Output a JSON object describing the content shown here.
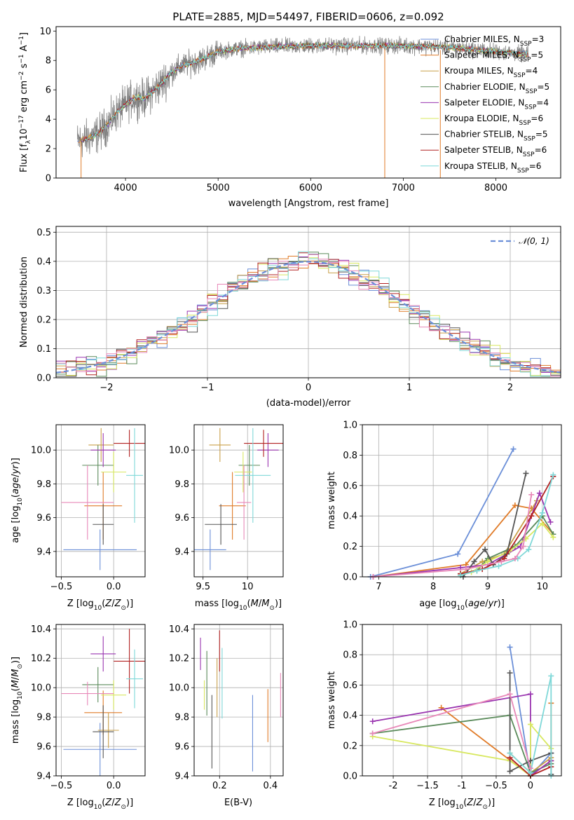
{
  "colors": [
    "#6b8fd8",
    "#e07b28",
    "#c9a04a",
    "#5a8a5a",
    "#9a35b0",
    "#d8e860",
    "#555555",
    "#b22222",
    "#7fd8d8",
    "#e888b8"
  ],
  "chart_data": [
    {
      "id": "spectrum",
      "type": "line",
      "title": "PLATE=2885, MJD=54497, FIBERID=0606, z=0.092",
      "xlabel": "wavelength [Angstrom, rest frame]",
      "ylabel": "Flux [fλ10⁻¹⁷ erg cm⁻² s⁻¹ A⁻¹]",
      "xlim": [
        3250,
        8700
      ],
      "ylim": [
        0,
        10.3
      ],
      "xticks": [
        4000,
        5000,
        6000,
        7000,
        8000
      ],
      "yticks": [
        0,
        2,
        4,
        6,
        8,
        10
      ],
      "data_color": "#808080",
      "data_range": [
        3480,
        8350
      ],
      "continuum": {
        "x": [
          3480,
          3600,
          3700,
          3800,
          3900,
          4000,
          4100,
          4200,
          4300,
          4400,
          4500,
          4600,
          4700,
          4800,
          4900,
          5000,
          5200,
          5500,
          6000,
          6500,
          7000,
          7500,
          8000,
          8350
        ],
        "y": [
          2.5,
          2.7,
          3.0,
          3.6,
          4.4,
          5.0,
          5.5,
          5.4,
          5.9,
          6.5,
          7.2,
          7.6,
          7.8,
          8.0,
          8.3,
          8.6,
          8.8,
          8.9,
          9.0,
          9.0,
          9.0,
          8.9,
          8.6,
          8.4
        ]
      },
      "legend_position": "upper right",
      "legend": [
        "Chabrier MILES, N_SSP=3",
        "Salpeter MILES, N_SSP=5",
        "Kroupa MILES, N_SSP=4",
        "Chabrier ELODIE, N_SSP=5",
        "Salpeter ELODIE, N_SSP=4",
        "Kroupa ELODIE, N_SSP=6",
        "Chabrier STELIB, N_SSP=5",
        "Salpeter STELIB, N_SSP=6",
        "Kroupa STELIB, N_SSP=6"
      ],
      "legend_items": [
        {
          "pre": "Chabrier MILES, N",
          "sub": "SSP",
          "post": "=3"
        },
        {
          "pre": "Salpeter MILES, N",
          "sub": "SSP",
          "post": "=5"
        },
        {
          "pre": "Kroupa MILES, N",
          "sub": "SSP",
          "post": "=4"
        },
        {
          "pre": "Chabrier ELODIE, N",
          "sub": "SSP",
          "post": "=5"
        },
        {
          "pre": "Salpeter ELODIE, N",
          "sub": "SSP",
          "post": "=4"
        },
        {
          "pre": "Kroupa ELODIE, N",
          "sub": "SSP",
          "post": "=6"
        },
        {
          "pre": "Chabrier STELIB, N",
          "sub": "SSP",
          "post": "=5"
        },
        {
          "pre": "Salpeter STELIB, N",
          "sub": "SSP",
          "post": "=6"
        },
        {
          "pre": "Kroupa STELIB, N",
          "sub": "SSP",
          "post": "=6"
        }
      ]
    },
    {
      "id": "residuals",
      "type": "histogram",
      "xlabel": "(data-model)/error",
      "ylabel": "Normed distribution",
      "xlim": [
        -2.5,
        2.5
      ],
      "ylim": [
        0,
        0.52
      ],
      "xticks": [
        -2,
        -1,
        0,
        1,
        2
      ],
      "yticks": [
        0.0,
        0.1,
        0.2,
        0.3,
        0.4,
        0.5
      ],
      "grid": true,
      "gaussian_legend": "𝒩(0, 1)",
      "gaussian_color": "#6b8fd8",
      "bin_width": 0.1,
      "bins_from": -2.5,
      "bin_count": 50
    },
    {
      "id": "z-age",
      "type": "errorbar",
      "xlabel": "Z [log₁₀(Z/Z⊙)]",
      "ylabel": "age  [log₁₀(age/yr)]",
      "xlim": [
        -0.55,
        0.3
      ],
      "ylim": [
        9.25,
        10.15
      ],
      "xticks": [
        -0.5,
        0.0
      ],
      "yticks": [
        9.4,
        9.6,
        9.8,
        10.0
      ],
      "grid": true,
      "points": [
        {
          "x": -0.13,
          "xerr": 0.35,
          "y": 9.41,
          "yerr": 0.12
        },
        {
          "x": -0.1,
          "xerr": 0.18,
          "y": 9.67,
          "yerr": 0.2
        },
        {
          "x": -0.12,
          "xerr": 0.12,
          "y": 10.03,
          "yerr": 0.1
        },
        {
          "x": -0.15,
          "xerr": 0.15,
          "y": 9.91,
          "yerr": 0.12
        },
        {
          "x": -0.1,
          "xerr": 0.12,
          "y": 10.0,
          "yerr": 0.1
        },
        {
          "x": 0.0,
          "xerr": 0.12,
          "y": 9.87,
          "yerr": 0.12
        },
        {
          "x": -0.1,
          "xerr": 0.1,
          "y": 9.56,
          "yerr": 0.12
        },
        {
          "x": 0.15,
          "xerr": 0.15,
          "y": 10.04,
          "yerr": 0.08
        },
        {
          "x": 0.2,
          "xerr": 0.08,
          "y": 9.85,
          "yerr": 0.28
        },
        {
          "x": -0.25,
          "xerr": 0.25,
          "y": 9.69,
          "yerr": 0.22
        }
      ]
    },
    {
      "id": "mass-age",
      "type": "errorbar",
      "xlabel": "mass [log₁₀(M/M⊙)]",
      "ylabel": "",
      "xlim": [
        9.4,
        10.4
      ],
      "ylim": [
        9.25,
        10.15
      ],
      "xticks": [
        9.5,
        10.0
      ],
      "yticks": [
        9.4,
        9.6,
        9.8,
        10.0
      ],
      "grid": true,
      "points": [
        {
          "x": 9.58,
          "xerr": 0.18,
          "y": 9.41,
          "yerr": 0.12
        },
        {
          "x": 9.83,
          "xerr": 0.15,
          "y": 9.67,
          "yerr": 0.2
        },
        {
          "x": 9.69,
          "xerr": 0.12,
          "y": 10.03,
          "yerr": 0.1
        },
        {
          "x": 10.02,
          "xerr": 0.12,
          "y": 9.91,
          "yerr": 0.12
        },
        {
          "x": 10.23,
          "xerr": 0.12,
          "y": 10.0,
          "yerr": 0.1
        },
        {
          "x": 9.95,
          "xerr": 0.1,
          "y": 9.87,
          "yerr": 0.12
        },
        {
          "x": 9.7,
          "xerr": 0.18,
          "y": 9.56,
          "yerr": 0.12
        },
        {
          "x": 10.18,
          "xerr": 0.22,
          "y": 10.04,
          "yerr": 0.08
        },
        {
          "x": 10.06,
          "xerr": 0.2,
          "y": 9.85,
          "yerr": 0.28
        },
        {
          "x": 9.96,
          "xerr": 0.08,
          "y": 9.69,
          "yerr": 0.22
        }
      ]
    },
    {
      "id": "age-weight",
      "type": "line",
      "xlabel": "age  [log₁₀(age/yr)]",
      "ylabel": "mass weight",
      "xlim": [
        6.7,
        10.35
      ],
      "ylim": [
        0,
        1.0
      ],
      "xticks": [
        7,
        8,
        9,
        10
      ],
      "yticks": [
        0.0,
        0.2,
        0.4,
        0.6,
        0.8,
        1.0
      ],
      "grid": true,
      "series": [
        {
          "x": [
            6.85,
            8.45,
            9.47
          ],
          "y": [
            0.0,
            0.15,
            0.84
          ]
        },
        {
          "x": [
            6.9,
            8.6,
            9.5,
            9.8,
            10.2
          ],
          "y": [
            0.0,
            0.08,
            0.47,
            0.45,
            0.28
          ]
        },
        {
          "x": [
            8.5,
            8.9,
            9.3,
            9.9
          ],
          "y": [
            0.02,
            0.1,
            0.15,
            0.5
          ]
        },
        {
          "x": [
            8.5,
            8.8,
            9.0,
            9.5,
            10.0,
            10.2
          ],
          "y": [
            0.01,
            0.04,
            0.12,
            0.2,
            0.4,
            0.28
          ]
        },
        {
          "x": [
            6.9,
            8.5,
            9.0,
            9.6,
            9.95,
            10.15
          ],
          "y": [
            0.0,
            0.06,
            0.08,
            0.2,
            0.55,
            0.36
          ]
        },
        {
          "x": [
            8.5,
            8.7,
            9.0,
            9.4,
            9.7,
            10.0,
            10.2
          ],
          "y": [
            0.01,
            0.03,
            0.1,
            0.17,
            0.25,
            0.35,
            0.26
          ]
        },
        {
          "x": [
            8.55,
            8.75,
            8.95,
            9.1,
            9.35,
            9.7
          ],
          "y": [
            0.0,
            0.1,
            0.18,
            0.08,
            0.15,
            0.68
          ]
        },
        {
          "x": [
            8.5,
            8.9,
            9.3,
            9.8,
            10.2
          ],
          "y": [
            0.02,
            0.05,
            0.12,
            0.4,
            0.66
          ]
        },
        {
          "x": [
            8.5,
            8.8,
            9.2,
            9.55,
            9.75,
            10.0,
            10.2
          ],
          "y": [
            0.01,
            0.04,
            0.07,
            0.12,
            0.18,
            0.42,
            0.67
          ]
        },
        {
          "x": [
            6.9,
            8.6,
            9.25,
            9.5,
            9.65,
            9.8
          ],
          "y": [
            0.0,
            0.05,
            0.1,
            0.12,
            0.2,
            0.54
          ]
        }
      ]
    },
    {
      "id": "z-mass",
      "type": "errorbar",
      "xlabel": "Z [log₁₀(Z/Z⊙)]",
      "ylabel": "mass [log₁₀(M/M⊙)]",
      "xlim": [
        -0.55,
        0.3
      ],
      "ylim": [
        9.4,
        10.43
      ],
      "xticks": [
        -0.5,
        0.0
      ],
      "yticks": [
        9.4,
        9.6,
        9.8,
        10.0,
        10.2,
        10.4
      ],
      "grid": true,
      "points": [
        {
          "x": -0.13,
          "xerr": 0.35,
          "y": 9.58,
          "yerr": 0.18
        },
        {
          "x": -0.1,
          "xerr": 0.18,
          "y": 9.83,
          "yerr": 0.15
        },
        {
          "x": -0.05,
          "xerr": 0.1,
          "y": 9.71,
          "yerr": 0.12
        },
        {
          "x": -0.15,
          "xerr": 0.15,
          "y": 10.02,
          "yerr": 0.12
        },
        {
          "x": -0.1,
          "xerr": 0.12,
          "y": 10.23,
          "yerr": 0.12
        },
        {
          "x": 0.0,
          "xerr": 0.12,
          "y": 9.95,
          "yerr": 0.1
        },
        {
          "x": -0.1,
          "xerr": 0.1,
          "y": 9.7,
          "yerr": 0.18
        },
        {
          "x": 0.15,
          "xerr": 0.15,
          "y": 10.18,
          "yerr": 0.22
        },
        {
          "x": 0.2,
          "xerr": 0.08,
          "y": 10.06,
          "yerr": 0.2
        },
        {
          "x": -0.25,
          "xerr": 0.25,
          "y": 9.96,
          "yerr": 0.08
        }
      ]
    },
    {
      "id": "ebv-mass",
      "type": "errorbar",
      "xlabel": "E(B-V)",
      "ylabel": "",
      "xlim": [
        0.1,
        0.45
      ],
      "ylim": [
        9.4,
        10.43
      ],
      "xticks": [
        0.2,
        0.4
      ],
      "yticks": [
        9.4,
        9.6,
        9.8,
        10.0,
        10.2,
        10.4
      ],
      "grid": true,
      "points": [
        {
          "x": 0.33,
          "y": 9.69,
          "yerr": 0.26
        },
        {
          "x": 0.39,
          "y": 9.81,
          "yerr": 0.18
        },
        {
          "x": 0.19,
          "y": 10.0,
          "yerr": 0.2
        },
        {
          "x": 0.15,
          "y": 10.03,
          "yerr": 0.22
        },
        {
          "x": 0.125,
          "y": 10.23,
          "yerr": 0.11
        },
        {
          "x": 0.14,
          "y": 9.95,
          "yerr": 0.1
        },
        {
          "x": 0.17,
          "y": 9.7,
          "yerr": 0.25
        },
        {
          "x": 0.2,
          "y": 10.25,
          "yerr": 0.14
        },
        {
          "x": 0.21,
          "y": 10.03,
          "yerr": 0.24
        },
        {
          "x": 0.44,
          "y": 9.95,
          "yerr": 0.15
        }
      ]
    },
    {
      "id": "z-weight",
      "type": "line",
      "xlabel": "Z [log₁₀(Z/Z⊙)]",
      "ylabel": "mass weight",
      "xlim": [
        -2.45,
        0.45
      ],
      "ylim": [
        0,
        1.0
      ],
      "xticks": [
        -2.0,
        -1.5,
        -1.0,
        -0.5,
        0.0
      ],
      "yticks": [
        0.0,
        0.2,
        0.4,
        0.6,
        0.8,
        1.0
      ],
      "grid": true,
      "series": [
        {
          "x": [
            -0.3,
            0.0,
            0.3
          ],
          "y": [
            0.85,
            0.0,
            0.15
          ]
        },
        {
          "x": [
            -1.3,
            0.0,
            0.3,
            0.3
          ],
          "y": [
            0.45,
            0.0,
            0.1,
            0.48
          ]
        },
        {
          "x": [
            -0.3,
            0.0,
            0.3
          ],
          "y": [
            0.15,
            0.02,
            0.12
          ]
        },
        {
          "x": [
            -2.3,
            -0.3,
            0.0,
            0.3
          ],
          "y": [
            0.28,
            0.4,
            0.02,
            0.08
          ]
        },
        {
          "x": [
            -2.3,
            0.0,
            0.0,
            0.3
          ],
          "y": [
            0.36,
            0.54,
            0.0,
            0.1
          ]
        },
        {
          "x": [
            -2.3,
            -0.3,
            0.0,
            0.0,
            0.3
          ],
          "y": [
            0.26,
            0.1,
            0.0,
            0.34,
            0.18
          ]
        },
        {
          "x": [
            -0.3,
            -0.3,
            0.0,
            0.3,
            0.3
          ],
          "y": [
            0.68,
            0.03,
            0.1,
            0.15,
            0.01
          ]
        },
        {
          "x": [
            -0.3,
            0.0,
            0.3
          ],
          "y": [
            0.12,
            0.0,
            0.06
          ]
        },
        {
          "x": [
            -0.3,
            0.0,
            0.3,
            0.3
          ],
          "y": [
            0.15,
            0.02,
            0.66,
            0.0
          ]
        },
        {
          "x": [
            -2.3,
            -0.3,
            0.0
          ],
          "y": [
            0.28,
            0.54,
            0.05
          ]
        }
      ]
    }
  ]
}
